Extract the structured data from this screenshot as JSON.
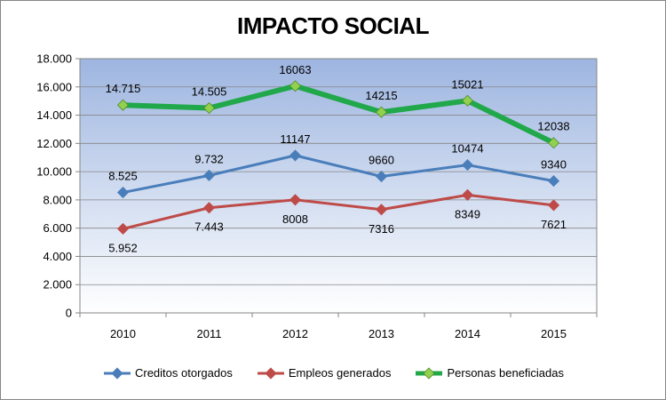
{
  "chart_data": {
    "type": "line",
    "title": "IMPACTO SOCIAL",
    "x": [
      "2010",
      "2011",
      "2012",
      "2013",
      "2014",
      "2015"
    ],
    "ylim": [
      0,
      18000
    ],
    "y_ticks": [
      "0",
      "2.000",
      "4.000",
      "6.000",
      "8.000",
      "10.000",
      "12.000",
      "14.000",
      "16.000",
      "18.000"
    ],
    "y_tick_values": [
      0,
      2000,
      4000,
      6000,
      8000,
      10000,
      12000,
      14000,
      16000,
      18000
    ],
    "grid": true,
    "legend_position": "bottom",
    "series": [
      {
        "name": "Creditos otorgados",
        "color": "#4a7ebb",
        "marker_color": "#4a7ebb",
        "values": [
          8525,
          9732,
          11147,
          9660,
          10474,
          9340
        ],
        "labels": [
          "8.525",
          "9.732",
          "11147",
          "9660",
          "10474",
          "9340"
        ],
        "label_side": "above"
      },
      {
        "name": "Empleos generados",
        "color": "#be4b48",
        "marker_color": "#be4b48",
        "values": [
          5952,
          7443,
          8008,
          7316,
          8349,
          7621
        ],
        "labels": [
          "5.952",
          "7.443",
          "8008",
          "7316",
          "8349",
          "7621"
        ],
        "label_side": "below"
      },
      {
        "name": "Personas beneficiadas",
        "color": "#21a84a",
        "marker_color": "#92d050",
        "values": [
          14715,
          14505,
          16063,
          14215,
          15021,
          12038
        ],
        "labels": [
          "14.715",
          "14.505",
          "16063",
          "14215",
          "15021",
          "12038"
        ],
        "label_side": "above"
      }
    ]
  }
}
